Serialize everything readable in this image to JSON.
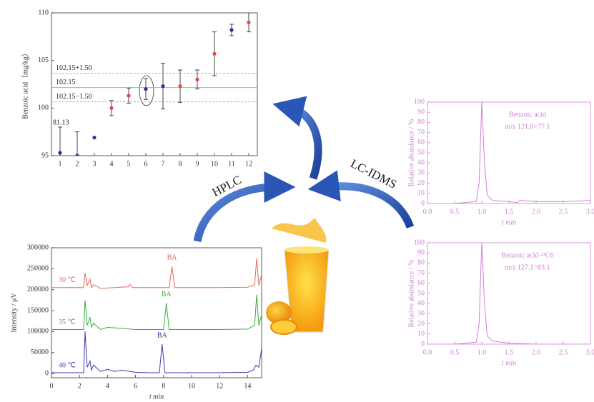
{
  "chart_data": [
    {
      "type": "scatter",
      "y_label": "Benzoic acid（mg/kg）",
      "x": [
        1,
        2,
        3,
        4,
        5,
        6,
        7,
        8,
        9,
        10,
        11,
        12
      ],
      "values": [
        95.3,
        95.0,
        96.9,
        100.0,
        101.3,
        102.0,
        102.3,
        102.3,
        103.0,
        105.7,
        108.2,
        109.0
      ],
      "errors": [
        2.7,
        2.5,
        0,
        0.8,
        0.8,
        1.1,
        2.4,
        1.7,
        1.0,
        2.3,
        0.6,
        1.0
      ],
      "colors": [
        "#1f2f9a",
        "#1f2f9a",
        "#1f2f9a",
        "#e8463a",
        "#e8463a",
        "#1f2f9a",
        "#1f2f9a",
        "#e8463a",
        "#e8463a",
        "#e8463a",
        "#1f2f9a",
        "#e8463a"
      ],
      "outlier_label": "81.13",
      "reference_lines": [
        {
          "value": 103.65,
          "label": "102.15+1.50",
          "dash": true,
          "color": "#7fcf7f"
        },
        {
          "value": 102.15,
          "label": "102.15",
          "dash": false,
          "color": "#7fcf7f"
        },
        {
          "value": 100.65,
          "label": "102.15−1.50",
          "dash": true,
          "color": "#7fcf7f"
        }
      ],
      "xlim": [
        0.5,
        12.5
      ],
      "xticks": [
        1,
        2,
        3,
        4,
        5,
        6,
        7,
        8,
        9,
        10,
        11,
        12
      ],
      "ylim": [
        95,
        110
      ],
      "yticks": [
        95,
        100,
        105,
        110
      ],
      "color": "#333333"
    },
    {
      "type": "line",
      "x_label": "t   min",
      "y_label": "Intensity / μV",
      "series": [
        {
          "name": "30 ℃",
          "color": "#e8685e",
          "peak_label": "BA",
          "x": [
            0,
            2,
            2.3,
            2.4,
            2.55,
            2.75,
            2.85,
            3.0,
            3.5,
            4.5,
            5.5,
            5.6,
            5.8,
            7,
            8.4,
            8.6,
            8.8,
            10,
            12,
            14,
            14.5,
            14.65,
            14.8,
            15
          ],
          "values": [
            205000,
            205000,
            205000,
            240000,
            210000,
            225000,
            205000,
            212000,
            203000,
            205000,
            207000,
            213000,
            205000,
            205000,
            205000,
            255000,
            205000,
            205000,
            205000,
            206000,
            212000,
            275000,
            210000,
            235000
          ]
        },
        {
          "name": "35 ℃",
          "color": "#3cab3c",
          "peak_label": "BA",
          "x": [
            0,
            2,
            2.3,
            2.4,
            2.55,
            2.75,
            2.85,
            3.0,
            3.5,
            4,
            5,
            6,
            7,
            8.0,
            8.2,
            8.4,
            10,
            12,
            14,
            14.5,
            14.65,
            14.8,
            15
          ],
          "values": [
            105000,
            105000,
            105000,
            175000,
            115000,
            135000,
            110000,
            120000,
            105000,
            110000,
            108000,
            105000,
            105000,
            105000,
            168000,
            105000,
            105000,
            105000,
            106000,
            115000,
            188000,
            115000,
            140000
          ]
        },
        {
          "name": "40 ℃",
          "color": "#3a3aa8",
          "peak_label": "BA",
          "x": [
            0,
            2,
            2.3,
            2.4,
            2.55,
            2.75,
            2.85,
            3.0,
            3.5,
            4,
            4.5,
            5,
            6,
            7,
            7.7,
            7.9,
            8.1,
            10,
            12,
            14,
            14.4,
            14.6,
            14.8,
            15
          ],
          "values": [
            2000,
            2000,
            2000,
            100000,
            15000,
            30000,
            8000,
            20000,
            5000,
            10000,
            5000,
            8000,
            3000,
            2000,
            2000,
            70000,
            2000,
            2000,
            2000,
            3000,
            8000,
            20000,
            15000,
            60000
          ]
        }
      ],
      "xlim": [
        0,
        15
      ],
      "xticks": [
        0,
        2,
        4,
        6,
        8,
        10,
        12,
        14
      ],
      "ylim": [
        -10000,
        300000
      ],
      "yticks": [
        0,
        50000,
        100000,
        150000,
        200000,
        250000,
        300000
      ],
      "color": "#333333"
    },
    {
      "type": "line",
      "x_label": "t   min",
      "y_label": "Relative abundance / %",
      "annotations": [
        "Benzoic acid",
        "m/z 121.0>77.1"
      ],
      "series": [
        {
          "color": "#d27fd6",
          "x": [
            0,
            0.5,
            0.7,
            0.9,
            0.95,
            1.0,
            1.05,
            1.1,
            1.2,
            1.5,
            1.65,
            1.7,
            2,
            2.5,
            3
          ],
          "values": [
            0,
            0,
            1,
            2,
            20,
            100,
            40,
            8,
            3,
            2,
            1,
            3,
            2,
            2,
            3
          ]
        }
      ],
      "xlim": [
        0,
        3
      ],
      "xticks": [
        {
          "value": 0,
          "label": "0.0"
        },
        0.5,
        {
          "value": 1,
          "label": "1.0"
        },
        1.5,
        {
          "value": 2,
          "label": "2.0"
        },
        2.5,
        {
          "value": 3,
          "label": "3.0"
        }
      ],
      "ylim": [
        0,
        100
      ],
      "yticks": [
        0,
        10,
        20,
        30,
        40,
        50,
        60,
        70,
        80,
        90,
        100
      ],
      "color": "#d27fd6"
    },
    {
      "type": "line",
      "x_label": "t   min",
      "y_label": "Relative abundance / %",
      "annotations": [
        "Benzoic acid-¹³C6",
        "m/z 127.1>83.1"
      ],
      "series": [
        {
          "color": "#d27fd6",
          "x": [
            0,
            0.5,
            0.7,
            0.9,
            0.95,
            1.0,
            1.05,
            1.1,
            1.2,
            1.5,
            2,
            2.5,
            3
          ],
          "values": [
            0,
            0,
            1,
            2,
            20,
            100,
            40,
            8,
            3,
            1,
            0,
            0,
            0
          ]
        }
      ],
      "xlim": [
        0,
        3
      ],
      "xticks": [
        {
          "value": 0,
          "label": "0.0"
        },
        0.5,
        {
          "value": 1,
          "label": "1.0"
        },
        1.5,
        {
          "value": 2,
          "label": "2.0"
        },
        2.5,
        {
          "value": 3,
          "label": "3.0"
        }
      ],
      "ylim": [
        0,
        100
      ],
      "yticks": [
        0,
        10,
        20,
        30,
        40,
        50,
        60,
        70,
        80,
        90,
        100
      ],
      "color": "#d27fd6"
    }
  ],
  "methods": [
    "HPLC",
    "LC-IDMS"
  ]
}
